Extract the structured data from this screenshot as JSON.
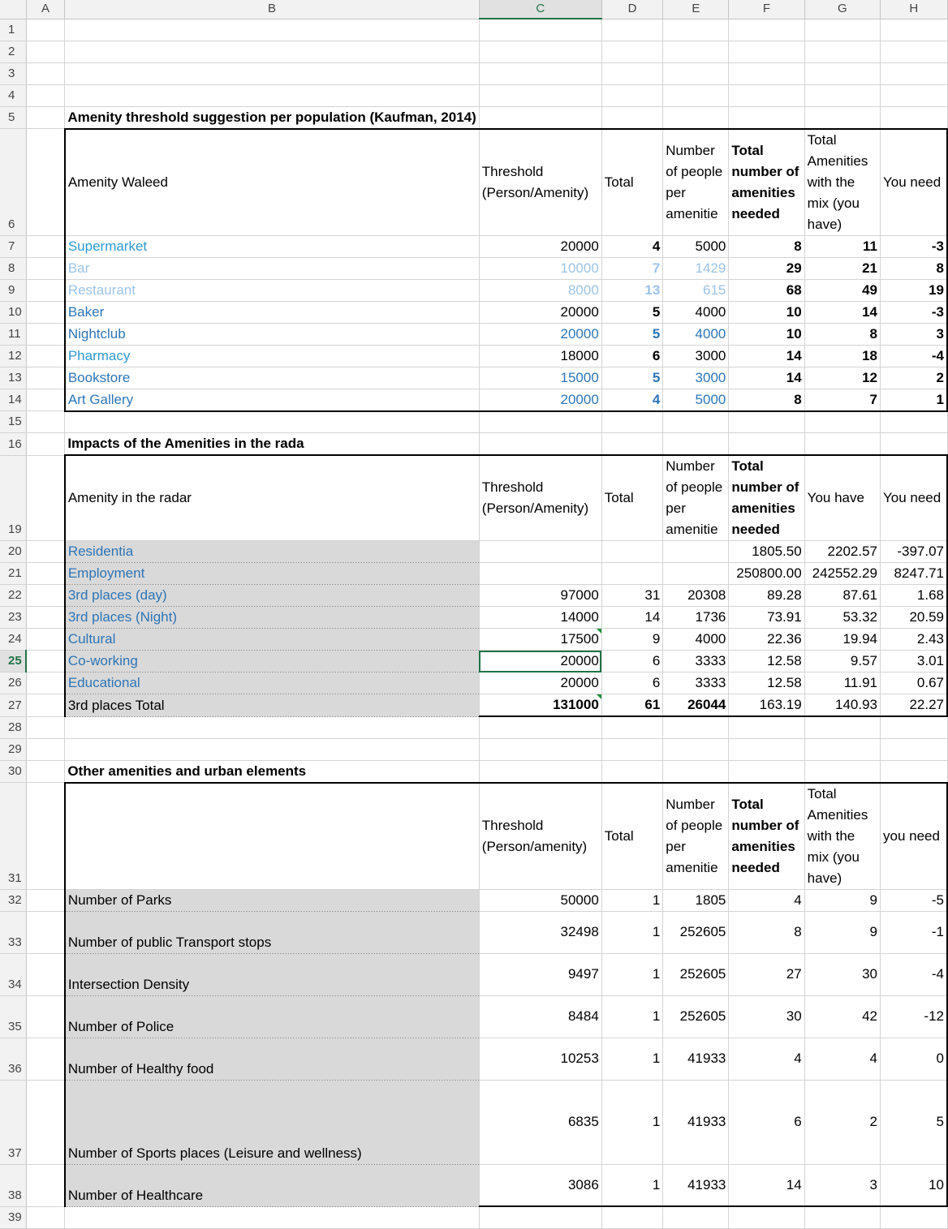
{
  "columns": [
    "",
    "A",
    "B",
    "C",
    "D",
    "E",
    "F",
    "G",
    "H"
  ],
  "selected_cell": "C25",
  "rows": [
    {
      "n": "1",
      "cells": [
        "",
        "",
        "",
        "",
        "",
        "",
        "",
        ""
      ]
    },
    {
      "n": "2",
      "cells": [
        "",
        "",
        "",
        "",
        "",
        "",
        "",
        ""
      ]
    },
    {
      "n": "3",
      "cells": [
        "",
        "",
        "",
        "",
        "",
        "",
        "",
        ""
      ]
    },
    {
      "n": "4",
      "cells": [
        "",
        "",
        "",
        "",
        "",
        "",
        "",
        ""
      ]
    },
    {
      "n": "5",
      "cells": [
        "",
        "Amenity threshold suggestion per population (Kaufman, 2014)",
        "",
        "",
        "",
        "",
        "",
        ""
      ]
    },
    {
      "n": "6",
      "cells": [
        "",
        "Amenity Waleed",
        "Threshold (Person/Amenity)",
        "Total",
        "Number of people per amenitie",
        "Total number of amenities needed",
        "Total Amenities with the mix (you have)",
        "You need"
      ]
    },
    {
      "n": "7",
      "cells": [
        "",
        "Supermarket",
        "20000",
        "4",
        "5000",
        "8",
        "11",
        "-3"
      ]
    },
    {
      "n": "8",
      "cells": [
        "",
        "Bar",
        "10000",
        "7",
        "1429",
        "29",
        "21",
        "8"
      ]
    },
    {
      "n": "9",
      "cells": [
        "",
        "Restaurant",
        "8000",
        "13",
        "615",
        "68",
        "49",
        "19"
      ]
    },
    {
      "n": "10",
      "cells": [
        "",
        "Baker",
        "20000",
        "5",
        "4000",
        "10",
        "14",
        "-3"
      ]
    },
    {
      "n": "11",
      "cells": [
        "",
        "Nightclub",
        "20000",
        "5",
        "4000",
        "10",
        "8",
        "3"
      ]
    },
    {
      "n": "12",
      "cells": [
        "",
        "Pharmacy",
        "18000",
        "6",
        "3000",
        "14",
        "18",
        "-4"
      ]
    },
    {
      "n": "13",
      "cells": [
        "",
        "Bookstore",
        "15000",
        "5",
        "3000",
        "14",
        "12",
        "2"
      ]
    },
    {
      "n": "14",
      "cells": [
        "",
        "Art Gallery",
        "20000",
        "4",
        "5000",
        "8",
        "7",
        "1"
      ]
    },
    {
      "n": "15",
      "cells": [
        "",
        "",
        "",
        "",
        "",
        "",
        "",
        ""
      ]
    },
    {
      "n": "16",
      "cells": [
        "",
        "Impacts of the Amenities in the rada",
        "",
        "",
        "",
        "",
        "",
        ""
      ]
    },
    {
      "n": "19",
      "cells": [
        "",
        "Amenity in the radar",
        "Threshold (Person/Amenity)",
        "Total",
        "Number of people per amenitie",
        "Total number of amenities needed",
        "You have",
        "You need"
      ]
    },
    {
      "n": "20",
      "cells": [
        "",
        "Residentia",
        "",
        "",
        "",
        "1805.50",
        "2202.57",
        "-397.07"
      ]
    },
    {
      "n": "21",
      "cells": [
        "",
        "Employment",
        "",
        "",
        "",
        "250800.00",
        "242552.29",
        "8247.71"
      ]
    },
    {
      "n": "22",
      "cells": [
        "",
        "3rd places (day)",
        "97000",
        "31",
        "20308",
        "89.28",
        "87.61",
        "1.68"
      ]
    },
    {
      "n": "23",
      "cells": [
        "",
        "3rd places (Night)",
        "14000",
        "14",
        "1736",
        "73.91",
        "53.32",
        "20.59"
      ]
    },
    {
      "n": "24",
      "cells": [
        "",
        "Cultural",
        "17500",
        "9",
        "4000",
        "22.36",
        "19.94",
        "2.43"
      ]
    },
    {
      "n": "25",
      "cells": [
        "",
        "Co-working",
        "20000",
        "6",
        "3333",
        "12.58",
        "9.57",
        "3.01"
      ]
    },
    {
      "n": "26",
      "cells": [
        "",
        "Educational",
        "20000",
        "6",
        "3333",
        "12.58",
        "11.91",
        "0.67"
      ]
    },
    {
      "n": "27",
      "cells": [
        "",
        "3rd places Total",
        "131000",
        "61",
        "26044",
        "163.19",
        "140.93",
        "22.27"
      ]
    },
    {
      "n": "28",
      "cells": [
        "",
        "",
        "",
        "",
        "",
        "",
        "",
        ""
      ]
    },
    {
      "n": "29",
      "cells": [
        "",
        "",
        "",
        "",
        "",
        "",
        "",
        ""
      ]
    },
    {
      "n": "30",
      "cells": [
        "",
        "Other amenities and urban elements",
        "",
        "",
        "",
        "",
        "",
        ""
      ]
    },
    {
      "n": "31",
      "cells": [
        "",
        "",
        "Threshold (Person/amenity)",
        "Total",
        "Number of people per amenitie",
        "Total number of amenities needed",
        "Total Amenities with the mix (you have)",
        "you need"
      ]
    },
    {
      "n": "32",
      "cells": [
        "",
        "Number of Parks",
        "50000",
        "1",
        "1805",
        "4",
        "9",
        "-5"
      ]
    },
    {
      "n": "33",
      "cells": [
        "",
        "Number of public Transport stops",
        "32498",
        "1",
        "252605",
        "8",
        "9",
        "-1"
      ]
    },
    {
      "n": "34",
      "cells": [
        "",
        "Intersection Density",
        "9497",
        "1",
        "252605",
        "27",
        "30",
        "-4"
      ]
    },
    {
      "n": "35",
      "cells": [
        "",
        "Number of  Police",
        "8484",
        "1",
        "252605",
        "30",
        "42",
        "-12"
      ]
    },
    {
      "n": "36",
      "cells": [
        "",
        "Number of Healthy food",
        "10253",
        "1",
        "41933",
        "4",
        "4",
        "0"
      ]
    },
    {
      "n": "37",
      "cells": [
        "",
        "Number of Sports places (Leisure and wellness)",
        "6835",
        "1",
        "41933",
        "6",
        "2",
        "5"
      ]
    },
    {
      "n": "38",
      "cells": [
        "",
        "Number of Healthcare",
        "3086",
        "1",
        "41933",
        "14",
        "3",
        "10"
      ]
    },
    {
      "n": "39",
      "cells": [
        "",
        "",
        "",
        "",
        "",
        "",
        "",
        ""
      ]
    }
  ]
}
